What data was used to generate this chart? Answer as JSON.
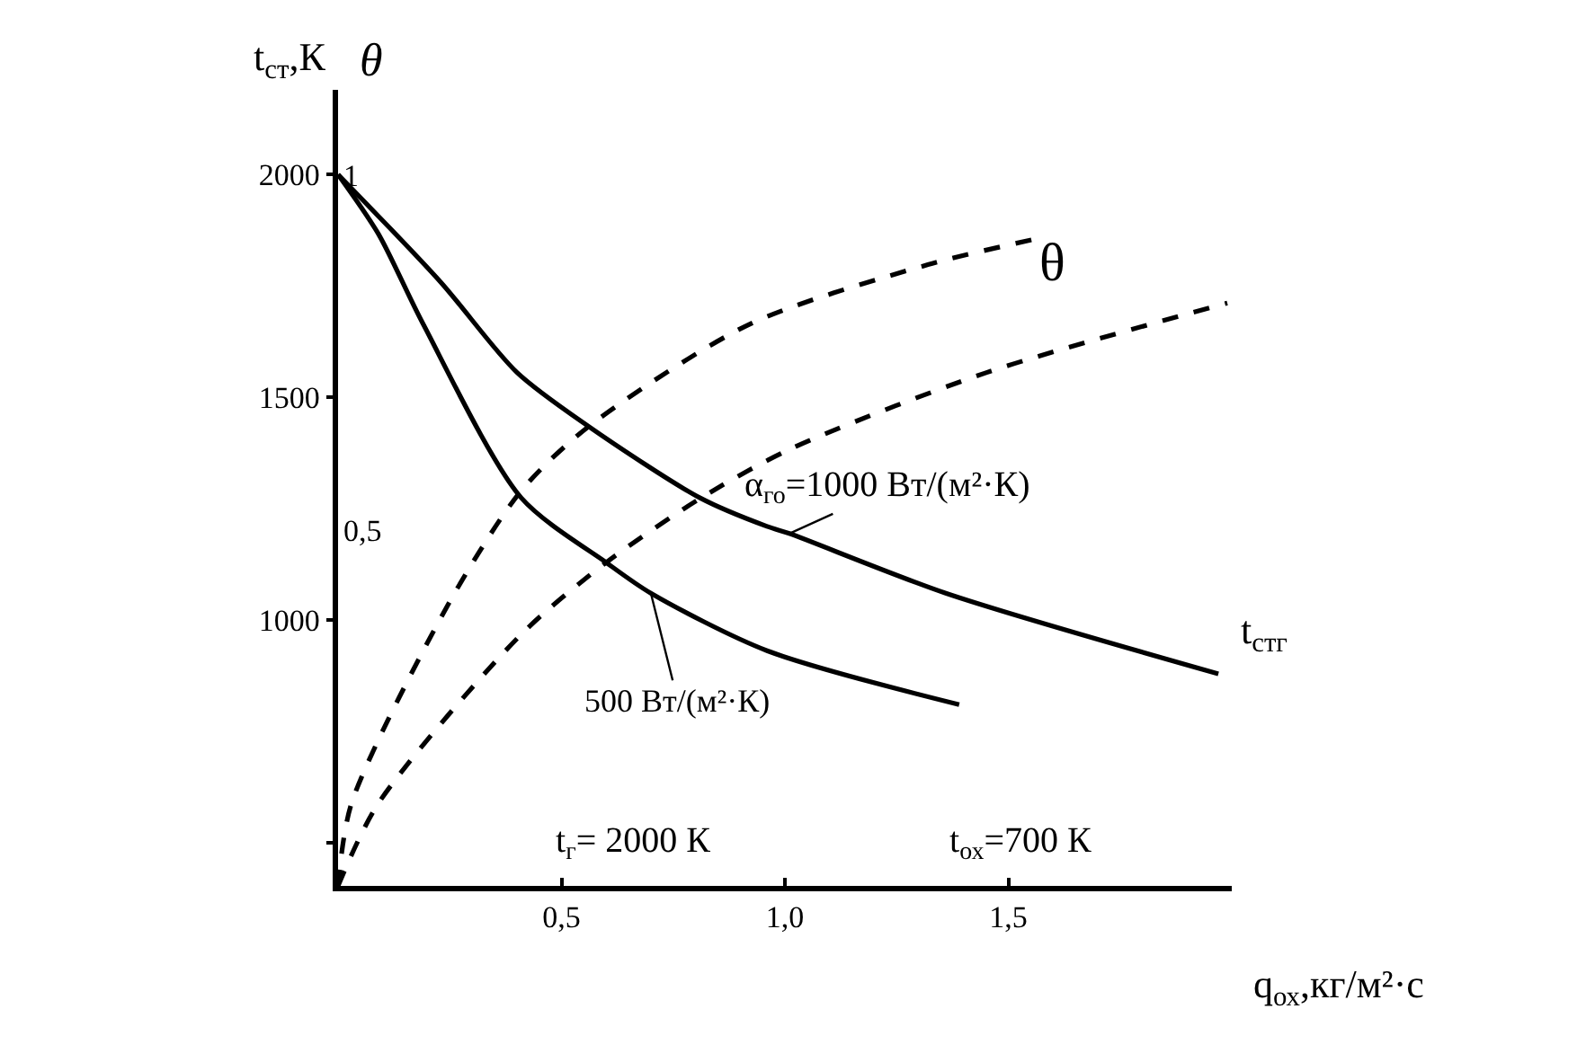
{
  "chart_data": {
    "type": "line",
    "xlabel": "q$_{ох}$,кг/м²·с",
    "ylabel": "t$_{ст}$,К",
    "y2label": "θ",
    "xlim": [
      0,
      2.0
    ],
    "xticks": [
      {
        "value": 0.5,
        "label": "0,5"
      },
      {
        "value": 1.0,
        "label": "1,0"
      },
      {
        "value": 1.5,
        "label": "1,5"
      }
    ],
    "ylim": [
      403,
      2190
    ],
    "yticks": [
      {
        "value": 500,
        "label": null
      },
      1000,
      1500,
      2000
    ],
    "y2lim": [
      0,
      1.12
    ],
    "y2ticks": [
      {
        "value": 0.5,
        "label": "0,5"
      },
      1
    ],
    "marker": "none",
    "series": [
      {
        "color": "#000000",
        "line_style": "solid",
        "axis": "y",
        "x": [
          0,
          0.23,
          0.4,
          0.56,
          0.81,
          0.96,
          1.01,
          1.36,
          1.97
        ],
        "values": [
          2000,
          1758,
          1556,
          1435,
          1274,
          1210,
          1194,
          1060,
          879
        ]
      },
      {
        "color": "#000000",
        "line_style": "solid",
        "axis": "y",
        "x": [
          0,
          0.09,
          0.19,
          0.41,
          0.6,
          0.7,
          0.96,
          1.39
        ],
        "values": [
          2000,
          1867,
          1665,
          1274,
          1129,
          1060,
          931,
          810
        ]
      },
      {
        "color": "#000000",
        "line_style": "dashed",
        "axis": "y2",
        "x": [
          0,
          0.03,
          0.25,
          0.41,
          0.56,
          0.92,
          1.32,
          1.56
        ],
        "values": [
          0,
          0.116,
          0.4,
          0.556,
          0.646,
          0.79,
          0.874,
          0.91
        ]
      },
      {
        "color": "#000000",
        "line_style": "dashed",
        "axis": "y2",
        "x": [
          0,
          0.09,
          0.41,
          0.6,
          0.81,
          1.01,
          1.45,
          1.99
        ],
        "values": [
          0,
          0.116,
          0.354,
          0.455,
          0.545,
          0.614,
          0.722,
          0.82
        ]
      }
    ],
    "annotations": [
      "θ",
      "t$_{стг}$",
      {
        "text": "α$_{го}$=1000 Вт/(м²·К)",
        "x": 1.01,
        "y": 1194
      },
      {
        "text": "500 Вт/(м²·К)",
        "x": 0.7,
        "y": 1060
      },
      "t$_{г}$= 2000 К",
      "t$_{ох}$=700 К"
    ]
  }
}
